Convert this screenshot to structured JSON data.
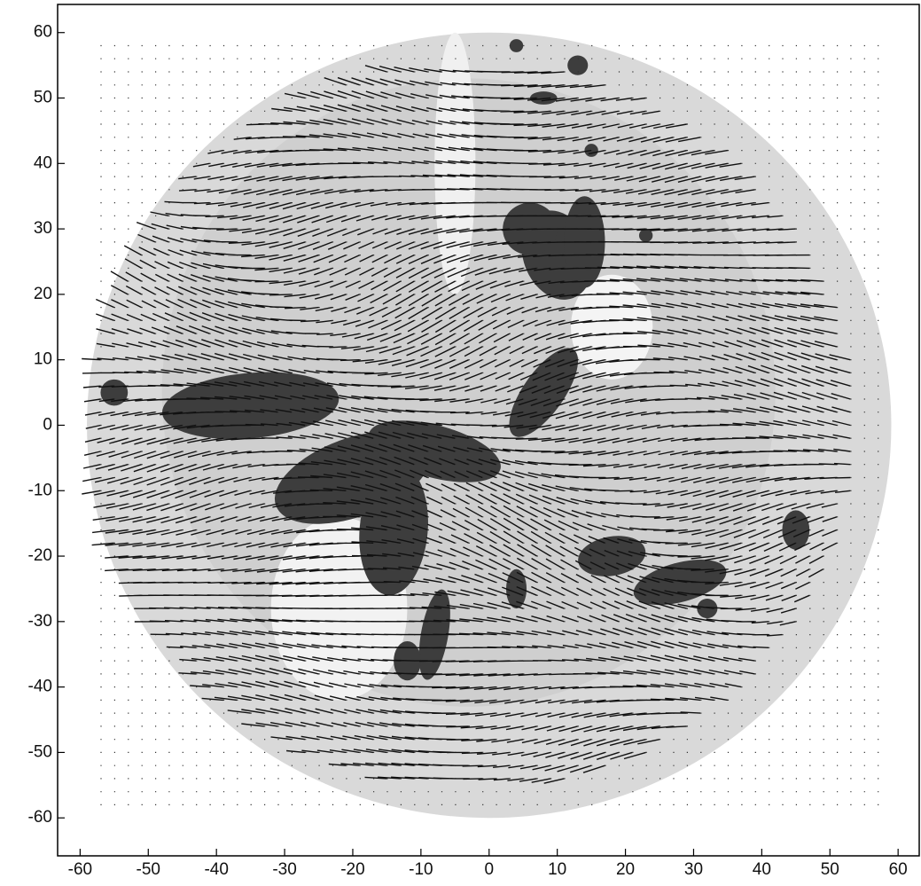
{
  "chart_data": {
    "type": "vector-field",
    "xlim": [
      -63.3,
      63.1
    ],
    "ylim": [
      -65.8,
      64.3
    ],
    "xticks": [
      -60,
      -50,
      -40,
      -30,
      -20,
      -10,
      0,
      10,
      20,
      30,
      40,
      50,
      60
    ],
    "yticks": [
      -60,
      -50,
      -40,
      -30,
      -20,
      -10,
      0,
      10,
      20,
      30,
      40,
      50,
      60
    ],
    "grid": false
  }
}
